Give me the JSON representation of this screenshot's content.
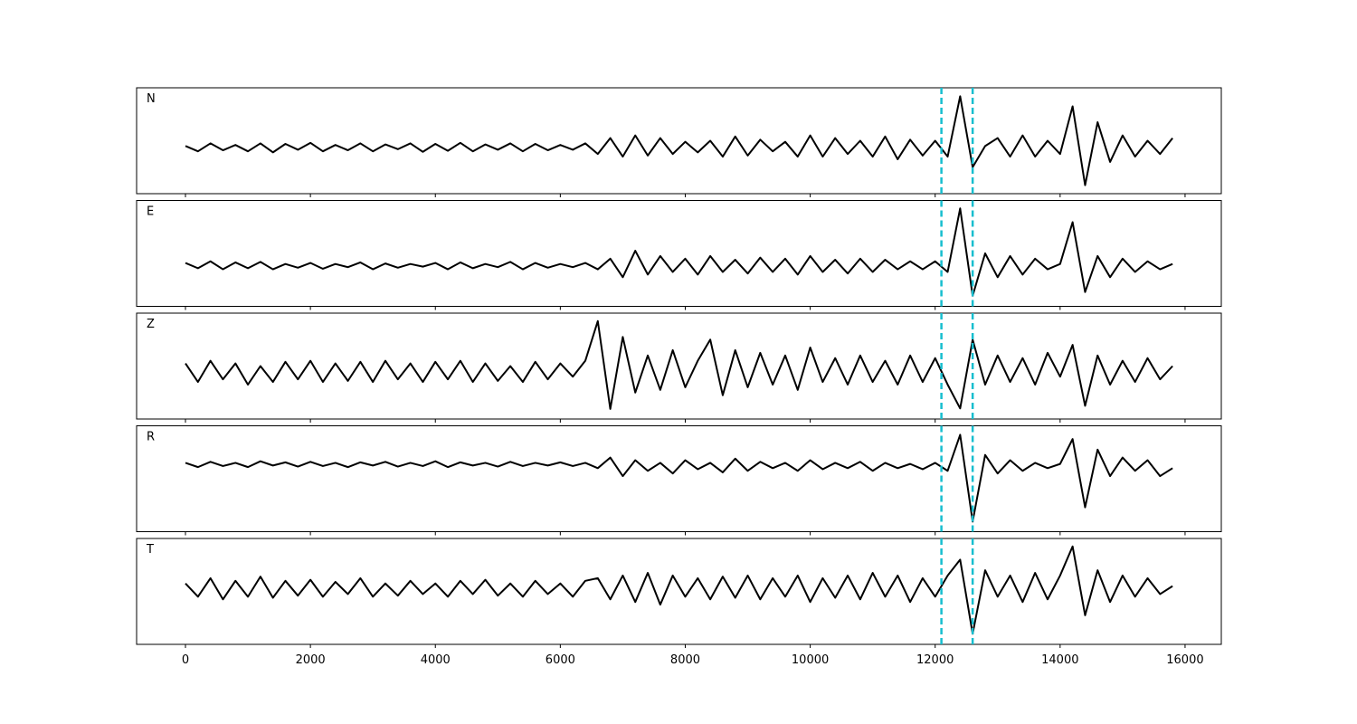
{
  "chart_data": {
    "type": "line",
    "x": [
      0,
      200,
      400,
      600,
      800,
      1000,
      1200,
      1400,
      1600,
      1800,
      2000,
      2200,
      2400,
      2600,
      2800,
      3000,
      3200,
      3400,
      3600,
      3800,
      4000,
      4200,
      4400,
      4600,
      4800,
      5000,
      5200,
      5400,
      5600,
      5800,
      6000,
      6200,
      6400,
      6600,
      6800,
      7000,
      7200,
      7400,
      7600,
      7800,
      8000,
      8200,
      8400,
      8600,
      8800,
      9000,
      9200,
      9400,
      9600,
      9800,
      10000,
      10200,
      10400,
      10600,
      10800,
      11000,
      11200,
      11400,
      11600,
      11800,
      12000,
      12200,
      12400,
      12600,
      12800,
      13000,
      13200,
      13400,
      13600,
      13800,
      14000,
      14200,
      14400,
      14600,
      14800,
      15000,
      15200,
      15400,
      15600,
      15800
    ],
    "xlim": [
      -782,
      16580
    ],
    "xticks": [
      0,
      2000,
      4000,
      6000,
      8000,
      10000,
      12000,
      14000,
      16000
    ],
    "ylim": [
      -1,
      1
    ],
    "vlines": [
      12100,
      12600
    ],
    "vline_color": "#17becf",
    "series": [
      {
        "name": "N",
        "color": "#000000",
        "values": [
          -0.1,
          -0.2,
          -0.05,
          -0.18,
          -0.08,
          -0.2,
          -0.05,
          -0.22,
          -0.06,
          -0.17,
          -0.04,
          -0.2,
          -0.08,
          -0.18,
          -0.05,
          -0.2,
          -0.07,
          -0.16,
          -0.05,
          -0.21,
          -0.06,
          -0.19,
          -0.04,
          -0.2,
          -0.07,
          -0.17,
          -0.05,
          -0.2,
          -0.06,
          -0.18,
          -0.08,
          -0.17,
          -0.05,
          -0.25,
          0.05,
          -0.3,
          0.1,
          -0.28,
          0.05,
          -0.25,
          -0.02,
          -0.22,
          0.0,
          -0.3,
          0.08,
          -0.28,
          0.02,
          -0.2,
          -0.02,
          -0.3,
          0.1,
          -0.3,
          0.05,
          -0.25,
          0.0,
          -0.3,
          0.08,
          -0.35,
          0.02,
          -0.28,
          0.0,
          -0.3,
          0.84,
          -0.5,
          -0.1,
          0.05,
          -0.3,
          0.1,
          -0.3,
          0.0,
          -0.25,
          0.65,
          -0.84,
          0.35,
          -0.4,
          0.1,
          -0.3,
          0.0,
          -0.25,
          0.05
        ]
      },
      {
        "name": "E",
        "color": "#000000",
        "values": [
          -0.18,
          -0.28,
          -0.15,
          -0.3,
          -0.17,
          -0.28,
          -0.16,
          -0.3,
          -0.2,
          -0.27,
          -0.18,
          -0.29,
          -0.2,
          -0.26,
          -0.17,
          -0.3,
          -0.19,
          -0.27,
          -0.2,
          -0.25,
          -0.18,
          -0.3,
          -0.17,
          -0.28,
          -0.2,
          -0.26,
          -0.16,
          -0.3,
          -0.18,
          -0.27,
          -0.2,
          -0.26,
          -0.18,
          -0.3,
          -0.1,
          -0.45,
          0.05,
          -0.4,
          -0.05,
          -0.35,
          -0.1,
          -0.4,
          -0.05,
          -0.35,
          -0.12,
          -0.38,
          -0.08,
          -0.35,
          -0.1,
          -0.4,
          -0.05,
          -0.35,
          -0.12,
          -0.38,
          -0.1,
          -0.35,
          -0.12,
          -0.3,
          -0.15,
          -0.3,
          -0.15,
          -0.35,
          0.85,
          -0.8,
          0.0,
          -0.45,
          -0.05,
          -0.4,
          -0.1,
          -0.3,
          -0.2,
          0.59,
          -0.73,
          -0.05,
          -0.45,
          -0.1,
          -0.35,
          -0.15,
          -0.3,
          -0.2
        ]
      },
      {
        "name": "Z",
        "color": "#000000",
        "values": [
          0.05,
          -0.3,
          0.1,
          -0.25,
          0.05,
          -0.35,
          0.0,
          -0.3,
          0.08,
          -0.25,
          0.1,
          -0.3,
          0.05,
          -0.28,
          0.08,
          -0.3,
          0.1,
          -0.25,
          0.05,
          -0.3,
          0.08,
          -0.25,
          0.1,
          -0.3,
          0.05,
          -0.28,
          0.0,
          -0.3,
          0.08,
          -0.25,
          0.05,
          -0.2,
          0.1,
          0.85,
          -0.81,
          0.55,
          -0.5,
          0.2,
          -0.45,
          0.3,
          -0.4,
          0.1,
          0.5,
          -0.55,
          0.3,
          -0.4,
          0.25,
          -0.35,
          0.2,
          -0.45,
          0.35,
          -0.3,
          0.15,
          -0.35,
          0.2,
          -0.3,
          0.1,
          -0.35,
          0.2,
          -0.3,
          0.15,
          -0.35,
          -0.8,
          0.5,
          -0.35,
          0.2,
          -0.3,
          0.15,
          -0.35,
          0.25,
          -0.2,
          0.4,
          -0.75,
          0.2,
          -0.35,
          0.1,
          -0.3,
          0.15,
          -0.25,
          0.0
        ]
      },
      {
        "name": "R",
        "color": "#000000",
        "values": [
          0.3,
          0.22,
          0.32,
          0.24,
          0.3,
          0.22,
          0.33,
          0.25,
          0.31,
          0.23,
          0.32,
          0.24,
          0.3,
          0.22,
          0.31,
          0.25,
          0.32,
          0.23,
          0.3,
          0.24,
          0.33,
          0.22,
          0.31,
          0.25,
          0.3,
          0.23,
          0.32,
          0.24,
          0.3,
          0.25,
          0.31,
          0.24,
          0.3,
          0.2,
          0.4,
          0.05,
          0.35,
          0.15,
          0.3,
          0.1,
          0.35,
          0.18,
          0.3,
          0.12,
          0.38,
          0.15,
          0.32,
          0.2,
          0.3,
          0.15,
          0.35,
          0.18,
          0.3,
          0.2,
          0.32,
          0.15,
          0.3,
          0.2,
          0.28,
          0.18,
          0.3,
          0.15,
          0.83,
          -0.81,
          0.45,
          0.1,
          0.35,
          0.15,
          0.3,
          0.2,
          0.28,
          0.75,
          -0.54,
          0.55,
          0.05,
          0.4,
          0.15,
          0.35,
          0.05,
          0.2
        ]
      },
      {
        "name": "T",
        "color": "#000000",
        "values": [
          0.15,
          -0.1,
          0.25,
          -0.15,
          0.2,
          -0.1,
          0.28,
          -0.12,
          0.2,
          -0.08,
          0.22,
          -0.1,
          0.18,
          -0.05,
          0.25,
          -0.1,
          0.15,
          -0.08,
          0.2,
          -0.05,
          0.15,
          -0.1,
          0.2,
          -0.05,
          0.22,
          -0.08,
          0.15,
          -0.1,
          0.2,
          -0.05,
          0.15,
          -0.1,
          0.2,
          0.25,
          -0.15,
          0.3,
          -0.2,
          0.35,
          -0.25,
          0.3,
          -0.1,
          0.25,
          -0.15,
          0.28,
          -0.12,
          0.3,
          -0.15,
          0.25,
          -0.1,
          0.3,
          -0.2,
          0.25,
          -0.12,
          0.3,
          -0.15,
          0.35,
          -0.1,
          0.3,
          -0.2,
          0.25,
          -0.1,
          0.3,
          0.6,
          -0.8,
          0.4,
          -0.1,
          0.3,
          -0.2,
          0.35,
          -0.15,
          0.3,
          0.85,
          -0.45,
          0.4,
          -0.2,
          0.3,
          -0.1,
          0.25,
          -0.05,
          0.1
        ]
      }
    ]
  }
}
